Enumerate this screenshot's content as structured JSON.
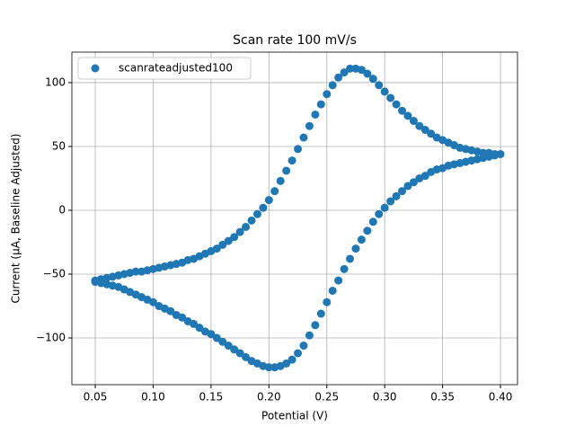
{
  "chart_data": {
    "type": "scatter",
    "title": "Scan rate 100 mV/s",
    "x_label": "Potential (V)",
    "y_label": "Current (µA, Baseline Adjusted)",
    "x": [
      0.05,
      0.055,
      0.06,
      0.065,
      0.07,
      0.075,
      0.08,
      0.085,
      0.09,
      0.095,
      0.1,
      0.105,
      0.11,
      0.115,
      0.12,
      0.125,
      0.13,
      0.135,
      0.14,
      0.145,
      0.15,
      0.155,
      0.16,
      0.165,
      0.17,
      0.175,
      0.18,
      0.185,
      0.19,
      0.195,
      0.2,
      0.205,
      0.21,
      0.215,
      0.22,
      0.225,
      0.23,
      0.235,
      0.24,
      0.245,
      0.25,
      0.255,
      0.26,
      0.265,
      0.27,
      0.275,
      0.28,
      0.285,
      0.29,
      0.295,
      0.3,
      0.305,
      0.31,
      0.315,
      0.32,
      0.325,
      0.33,
      0.335,
      0.34,
      0.345,
      0.35,
      0.355,
      0.36,
      0.365,
      0.37,
      0.375,
      0.38,
      0.385,
      0.39,
      0.395,
      0.4,
      0.395,
      0.39,
      0.385,
      0.38,
      0.375,
      0.37,
      0.365,
      0.36,
      0.355,
      0.35,
      0.345,
      0.34,
      0.335,
      0.33,
      0.325,
      0.32,
      0.315,
      0.31,
      0.305,
      0.3,
      0.295,
      0.29,
      0.285,
      0.28,
      0.275,
      0.27,
      0.265,
      0.26,
      0.255,
      0.25,
      0.245,
      0.24,
      0.235,
      0.23,
      0.225,
      0.22,
      0.215,
      0.21,
      0.205,
      0.2,
      0.195,
      0.19,
      0.185,
      0.18,
      0.175,
      0.17,
      0.165,
      0.16,
      0.155,
      0.15,
      0.145,
      0.14,
      0.135,
      0.13,
      0.125,
      0.12,
      0.115,
      0.11,
      0.105,
      0.1,
      0.095,
      0.09,
      0.085,
      0.08,
      0.075,
      0.07,
      0.065,
      0.06,
      0.055,
      0.05
    ],
    "series": [
      {
        "name": "scanrateadjusted100",
        "color": "#1f77b4",
        "values": [
          -55,
          -54,
          -53,
          -52,
          -51,
          -50,
          -49,
          -48,
          -48,
          -47,
          -46,
          -45,
          -44,
          -43,
          -42,
          -41,
          -39,
          -38,
          -36,
          -34,
          -32,
          -30,
          -27,
          -24,
          -21,
          -17,
          -13,
          -8,
          -3,
          2,
          8,
          15,
          23,
          31,
          39,
          48,
          57,
          66,
          75,
          83,
          91,
          98,
          104,
          108,
          111,
          111,
          110,
          107,
          103,
          98,
          93,
          88,
          83,
          78,
          74,
          70,
          66,
          63,
          60,
          57,
          55,
          53,
          51,
          49,
          48,
          47,
          46,
          45,
          45,
          44,
          44,
          43,
          42,
          41,
          40,
          39,
          38,
          37,
          36,
          35,
          33,
          32,
          30,
          27,
          25,
          22,
          19,
          15,
          11,
          7,
          2,
          -3,
          -9,
          -16,
          -23,
          -30,
          -38,
          -46,
          -55,
          -63,
          -72,
          -81,
          -90,
          -98,
          -106,
          -112,
          -117,
          -120,
          -122,
          -123,
          -123,
          -122,
          -120,
          -118,
          -115,
          -112,
          -109,
          -106,
          -103,
          -100,
          -97,
          -95,
          -92,
          -89,
          -87,
          -84,
          -82,
          -79,
          -77,
          -75,
          -72,
          -70,
          -68,
          -66,
          -64,
          -62,
          -60,
          -59,
          -58,
          -57,
          -56
        ]
      }
    ],
    "xlim": [
      0.0298,
      0.4147
    ],
    "ylim": [
      -136.6,
      123.9
    ],
    "xticks": [
      0.05,
      {
        "value": 0.1,
        "label": "0.10"
      },
      0.15,
      {
        "value": 0.2,
        "label": "0.20"
      },
      0.25,
      {
        "value": 0.3,
        "label": "0.30"
      },
      0.35,
      {
        "value": 0.4,
        "label": "0.40"
      }
    ],
    "yticks": [
      {
        "value": -100,
        "label": "−100"
      },
      {
        "value": -50,
        "label": "−50"
      },
      0,
      50,
      100
    ],
    "grid": true,
    "legend": "upper-left"
  }
}
